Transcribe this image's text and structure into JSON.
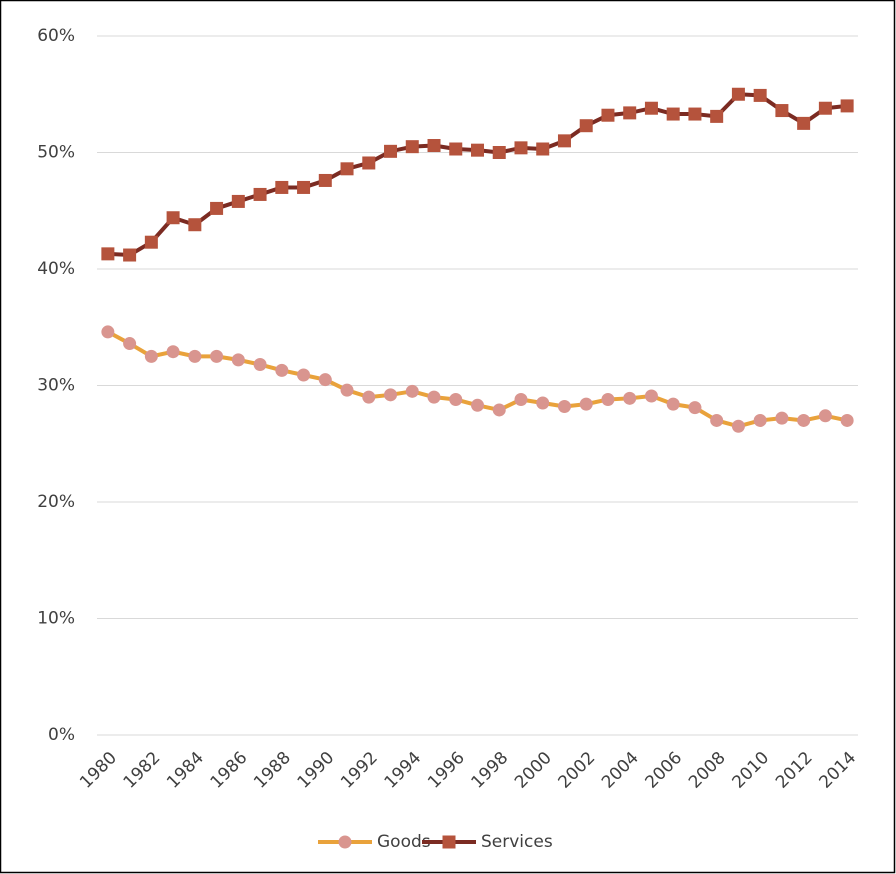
{
  "chart_data": {
    "type": "line",
    "categories": [
      "1980",
      null,
      "1982",
      null,
      "1984",
      null,
      "1986",
      null,
      "1988",
      null,
      "1990",
      null,
      "1992",
      null,
      "1994",
      null,
      "1996",
      null,
      "1998",
      null,
      "2000",
      null,
      "2002",
      null,
      "2004",
      null,
      "2006",
      null,
      "2008",
      null,
      "2010",
      null,
      "2012",
      null,
      "2014"
    ],
    "series": [
      {
        "name": "Goods",
        "color": "#E9A23B",
        "marker": "circle",
        "marker_color": "#D9958F",
        "values": [
          34.6,
          33.6,
          32.5,
          32.9,
          32.5,
          32.5,
          32.2,
          31.8,
          31.3,
          30.9,
          30.5,
          29.6,
          29.0,
          29.2,
          29.5,
          29.0,
          28.8,
          28.3,
          27.9,
          28.8,
          28.5,
          28.2,
          28.4,
          28.8,
          28.9,
          29.1,
          28.4,
          28.1,
          27.0,
          26.5,
          27.0,
          27.2,
          27.0,
          27.4,
          27.0
        ]
      },
      {
        "name": "Services",
        "color": "#7B2B22",
        "marker": "square",
        "marker_color": "#B5533C",
        "values": [
          41.3,
          41.2,
          42.3,
          44.4,
          43.8,
          45.2,
          45.8,
          46.4,
          47.0,
          47.0,
          47.6,
          48.6,
          49.1,
          50.1,
          50.5,
          50.6,
          50.3,
          50.2,
          50.0,
          50.4,
          50.3,
          51.0,
          52.3,
          53.2,
          53.4,
          53.8,
          53.3,
          53.3,
          53.1,
          55.0,
          54.9,
          53.6,
          52.5,
          53.8,
          54.0
        ]
      }
    ],
    "ylim": [
      0,
      60
    ],
    "yticks": [
      {
        "value": 0,
        "label": "0%"
      },
      {
        "value": 10,
        "label": "10%"
      },
      {
        "value": 20,
        "label": "20%"
      },
      {
        "value": 30,
        "label": "30%"
      },
      {
        "value": 40,
        "label": "40%"
      },
      {
        "value": 50,
        "label": "50%"
      },
      {
        "value": 60,
        "label": "60%"
      }
    ],
    "grid": true,
    "legend": "bottom"
  }
}
